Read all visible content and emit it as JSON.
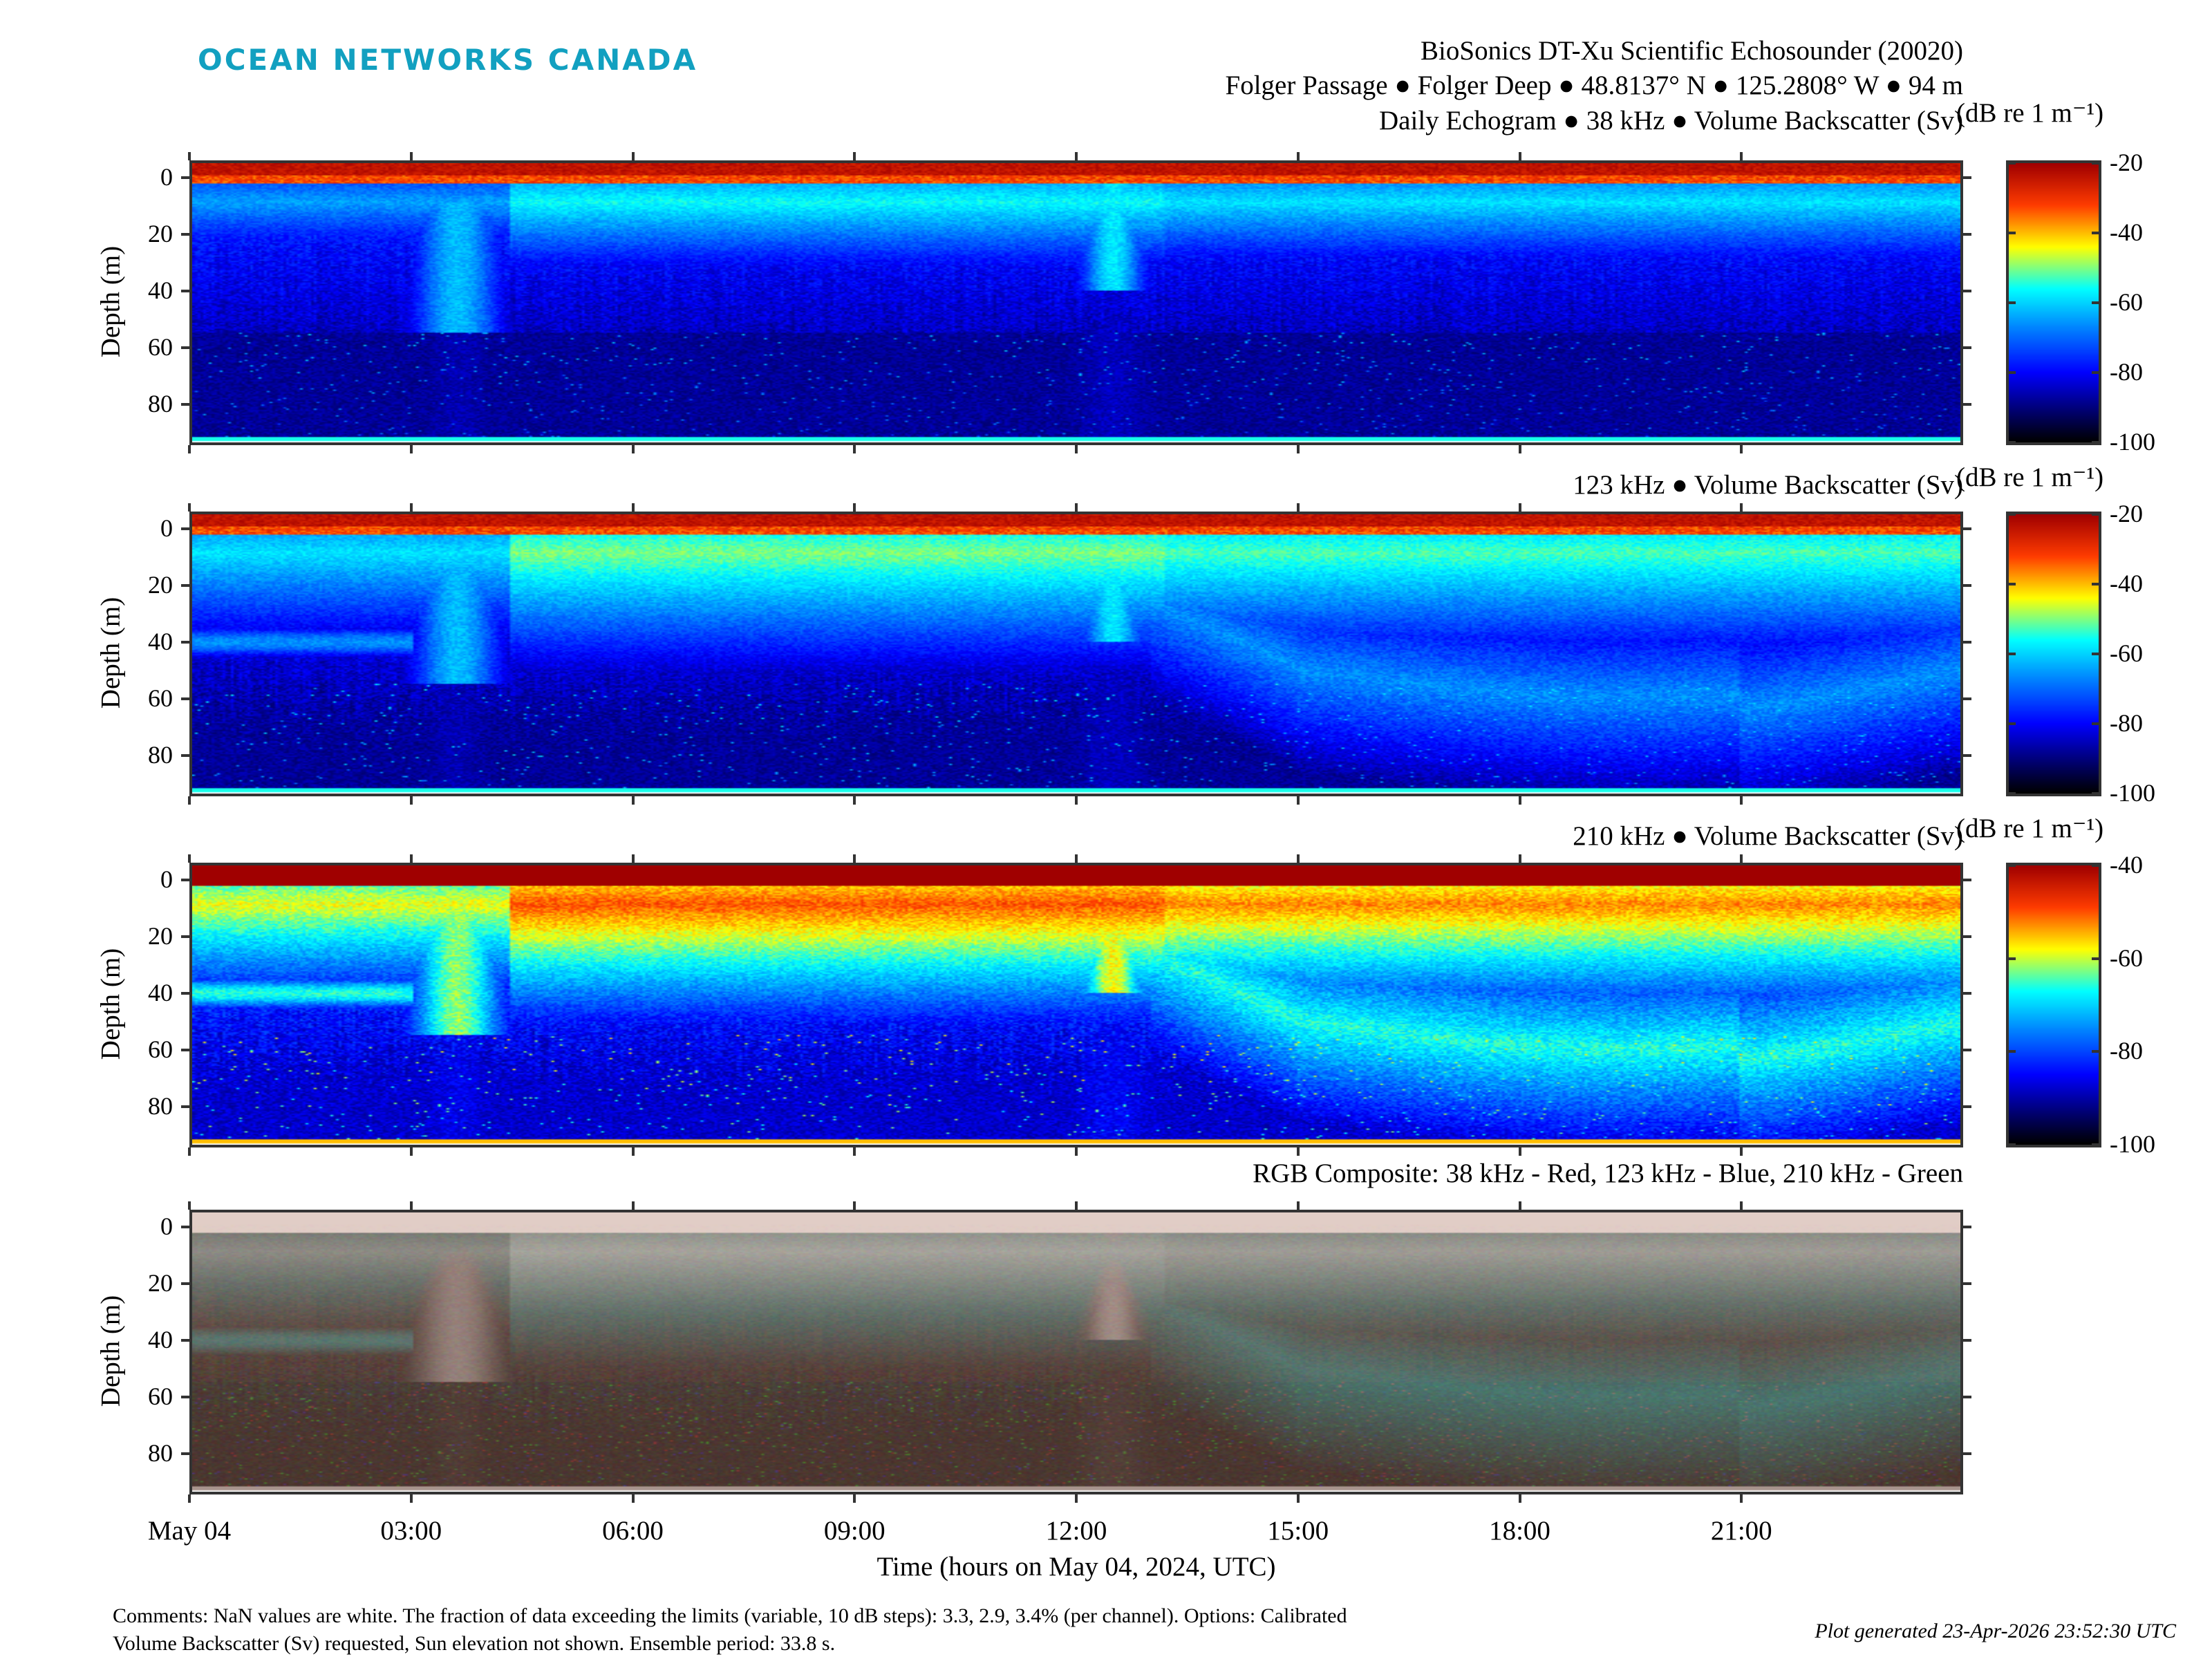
{
  "logo": "OCEAN NETWORKS CANADA",
  "header": {
    "line1": "BioSonics DT-Xu Scientific Echosounder (20020)",
    "line2": "Folger Passage ● Folger Deep ● 48.8137° N ● 125.2808° W ● 94 m"
  },
  "colors": {
    "logo": "#12a0c0",
    "axes": "#333333"
  },
  "chart_data": [
    {
      "type": "heatmap",
      "title": "Daily Echogram ● 38 kHz ● Volume Backscatter (Sv)",
      "colorbar_label": "(dB re 1 m⁻¹)",
      "frequency_khz": 38,
      "clim": [
        -100,
        -20
      ],
      "colorbar_ticks": [
        "-20",
        "-40",
        "-60",
        "-80",
        "-100"
      ],
      "ylabel": "Depth (m)",
      "ylim": [
        -6,
        94.5
      ],
      "yticks": [
        "0",
        "20",
        "40",
        "60",
        "80"
      ]
    },
    {
      "type": "heatmap",
      "title": "123 kHz ● Volume Backscatter (Sv)",
      "colorbar_label": "(dB re 1 m⁻¹)",
      "frequency_khz": 123,
      "clim": [
        -100,
        -20
      ],
      "colorbar_ticks": [
        "-20",
        "-40",
        "-60",
        "-80",
        "-100"
      ],
      "ylabel": "Depth (m)",
      "ylim": [
        -6,
        94.5
      ],
      "yticks": [
        "0",
        "20",
        "40",
        "60",
        "80"
      ]
    },
    {
      "type": "heatmap",
      "title": "210 kHz ● Volume Backscatter (Sv)",
      "colorbar_label": "(dB re 1 m⁻¹)",
      "frequency_khz": 210,
      "clim": [
        -100,
        -40
      ],
      "colorbar_ticks": [
        "-40",
        "-60",
        "-80",
        "-100"
      ],
      "ylabel": "Depth (m)",
      "ylim": [
        -6,
        94.5
      ],
      "yticks": [
        "0",
        "20",
        "40",
        "60",
        "80"
      ]
    },
    {
      "type": "heatmap",
      "title": "RGB Composite: 38 kHz - Red, 123 kHz - Blue, 210 kHz - Green",
      "ylabel": "Depth (m)",
      "ylim": [
        -6,
        94.5
      ],
      "yticks": [
        "0",
        "20",
        "40",
        "60",
        "80"
      ]
    }
  ],
  "xaxis": {
    "label": "Time (hours on May 04, 2024, UTC)",
    "xlim_hours": [
      0,
      24
    ],
    "tick_hours": [
      0,
      3,
      6,
      9,
      12,
      15,
      18,
      21
    ],
    "tick_labels": [
      "May 04",
      "03:00",
      "06:00",
      "09:00",
      "12:00",
      "15:00",
      "18:00",
      "21:00"
    ]
  },
  "footer": {
    "comments_line1": "Comments: NaN values are white. The fraction of data exceeding the limits (variable, 10 dB steps): 3.3, 2.9, 3.4% (per channel). Options: Calibrated",
    "comments_line2": "Volume Backscatter (Sv) requested, Sun elevation not shown. Ensemble period: 33.8 s.",
    "generated": "Plot generated 23-Apr-2026 23:52:30 UTC"
  }
}
